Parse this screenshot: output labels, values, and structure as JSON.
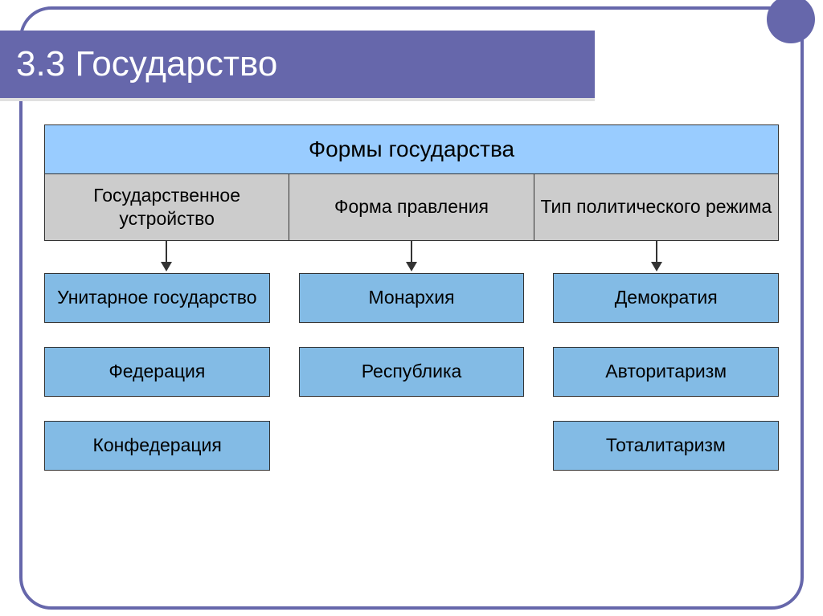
{
  "title": "3.3 Государство",
  "colors": {
    "frame": "#6667ab",
    "title_bg": "#6667ab",
    "title_text": "#ffffff",
    "header_fill": "#99ccff",
    "subheader_fill": "#cccccc",
    "box_fill": "#83bbe5",
    "border": "#333333",
    "arrow": "#333333",
    "accent_line": "#e0e0e0"
  },
  "typography": {
    "title_fontsize": 44,
    "header_fontsize": 28,
    "subheader_fontsize": 23,
    "box_fontsize": 23,
    "font_family": "Arial"
  },
  "diagram": {
    "type": "tree",
    "header": "Формы государства",
    "columns": [
      {
        "subheader": "Государственное устройство",
        "items": [
          "Унитарное государство",
          "Федерация",
          "Конфедерация"
        ]
      },
      {
        "subheader": "Форма правления",
        "items": [
          "Монархия",
          "Республика",
          ""
        ]
      },
      {
        "subheader": "Тип политического режима",
        "items": [
          "Демократия",
          "Авторитаризм",
          "Тоталитаризм"
        ]
      }
    ],
    "row_gap": 30,
    "col_gap": 36,
    "box_min_height": 62
  }
}
